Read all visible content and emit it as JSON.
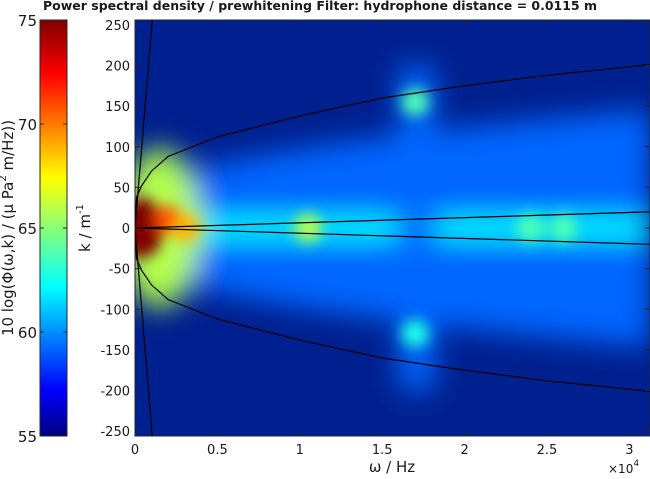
{
  "chart_data": {
    "type": "heatmap",
    "title": "Power spectral density / prewhitening Filter: hydrophone distance = 0.0115 m",
    "xlabel": "ω / Hz",
    "x_multiplier": "×10",
    "x_multiplier_exponent": "4",
    "ylabel": "k / m",
    "ylabel_superscript": "-1",
    "colorbar_label": "10 log(Φ(ω,k) / (μ Pa",
    "colorbar_label_superscript": "2",
    "colorbar_label_suffix": " m/Hz))",
    "xlim": [
      0,
      31250
    ],
    "ylim": [
      -256,
      256
    ],
    "clim": [
      55,
      75
    ],
    "xticks": [
      0,
      5000,
      10000,
      15000,
      20000,
      25000,
      30000
    ],
    "xtick_labels": [
      "0",
      "0.5",
      "1",
      "1.5",
      "2",
      "2.5",
      "3"
    ],
    "yticks": [
      250,
      200,
      150,
      100,
      50,
      0,
      -50,
      -100,
      -150,
      -200,
      -250
    ],
    "ytick_labels": [
      "250",
      "200",
      "150",
      "100",
      "50",
      "0",
      "-50",
      "-100",
      "-150",
      "-200",
      "-250"
    ],
    "cticks": [
      75,
      70,
      65,
      60,
      55
    ],
    "ctick_labels": [
      "75",
      "70",
      "65",
      "60",
      "55"
    ],
    "colormap": "jet",
    "hotspots": [
      {
        "x": 400,
        "y": 0,
        "level": 75
      },
      {
        "x": 2000,
        "y": 10,
        "level": 71
      },
      {
        "x": 3100,
        "y": 0,
        "level": 69
      },
      {
        "x": 10500,
        "y": 0,
        "level": 66
      },
      {
        "x": 17000,
        "y": 155,
        "level": 64
      },
      {
        "x": 17000,
        "y": -130,
        "level": 63
      },
      {
        "x": 24000,
        "y": 0,
        "level": 64
      },
      {
        "x": 26000,
        "y": 0,
        "level": 64
      }
    ],
    "overlay_curves": [
      {
        "points": [
          [
            0,
            0
          ],
          [
            100,
            38
          ],
          [
            400,
            52
          ],
          [
            1000,
            70
          ],
          [
            2000,
            88
          ],
          [
            5000,
            112
          ],
          [
            10000,
            138
          ],
          [
            15000,
            160
          ],
          [
            20000,
            175
          ],
          [
            25000,
            188
          ],
          [
            31250,
            201
          ]
        ]
      },
      {
        "points": [
          [
            0,
            0
          ],
          [
            100,
            -38
          ],
          [
            400,
            -52
          ],
          [
            1000,
            -70
          ],
          [
            2000,
            -88
          ],
          [
            5000,
            -112
          ],
          [
            10000,
            -138
          ],
          [
            15000,
            -160
          ],
          [
            20000,
            -175
          ],
          [
            25000,
            -188
          ],
          [
            31250,
            -201
          ]
        ]
      },
      {
        "points": [
          [
            0,
            0
          ],
          [
            31250,
            20
          ]
        ]
      },
      {
        "points": [
          [
            0,
            0
          ],
          [
            31250,
            -20
          ]
        ]
      },
      {
        "points": [
          [
            0,
            0
          ],
          [
            1050,
            256
          ]
        ]
      },
      {
        "points": [
          [
            0,
            0
          ],
          [
            1050,
            -256
          ]
        ]
      }
    ]
  }
}
